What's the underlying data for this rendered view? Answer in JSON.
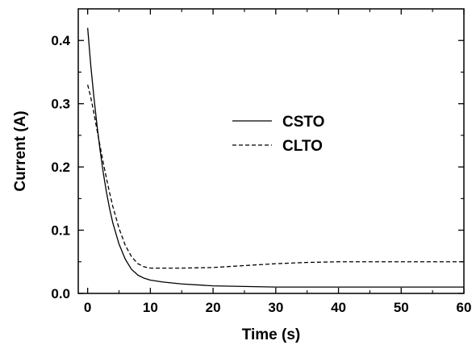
{
  "chart_data": {
    "type": "line",
    "title": "",
    "xlabel": "Time (s)",
    "ylabel": "Current (A)",
    "xlim": [
      -1.5,
      60
    ],
    "ylim": [
      0,
      0.45
    ],
    "xticks": [
      0,
      10,
      20,
      30,
      40,
      50,
      60
    ],
    "xtick_labels": [
      "0",
      "10",
      "20",
      "30",
      "40",
      "50",
      "60"
    ],
    "yticks": [
      0,
      0.1,
      0.2,
      0.3,
      0.4
    ],
    "ytick_labels": [
      "0.0",
      "0.1",
      "0.2",
      "0.3",
      "0.4"
    ],
    "grid": false,
    "legend_position": "center-right",
    "series": [
      {
        "name": "CSTO",
        "style": "solid",
        "color": "#000000",
        "x": [
          0,
          0.5,
          1,
          1.5,
          2,
          2.5,
          3,
          3.5,
          4,
          5,
          6,
          7,
          8,
          9,
          10,
          12,
          15,
          20,
          25,
          30,
          40,
          50,
          60
        ],
        "y": [
          0.42,
          0.36,
          0.31,
          0.265,
          0.225,
          0.19,
          0.16,
          0.134,
          0.112,
          0.078,
          0.054,
          0.038,
          0.029,
          0.024,
          0.021,
          0.018,
          0.015,
          0.012,
          0.011,
          0.01,
          0.01,
          0.01,
          0.01
        ]
      },
      {
        "name": "CLTO",
        "style": "dashed",
        "color": "#000000",
        "x": [
          0,
          0.5,
          1,
          1.5,
          2,
          2.5,
          3,
          3.5,
          4,
          5,
          6,
          7,
          8,
          9,
          10,
          12,
          15,
          20,
          25,
          30,
          35,
          40,
          50,
          60
        ],
        "y": [
          0.33,
          0.31,
          0.285,
          0.258,
          0.232,
          0.206,
          0.182,
          0.159,
          0.138,
          0.103,
          0.076,
          0.058,
          0.047,
          0.042,
          0.04,
          0.04,
          0.04,
          0.041,
          0.044,
          0.047,
          0.049,
          0.05,
          0.05,
          0.05
        ]
      }
    ]
  }
}
